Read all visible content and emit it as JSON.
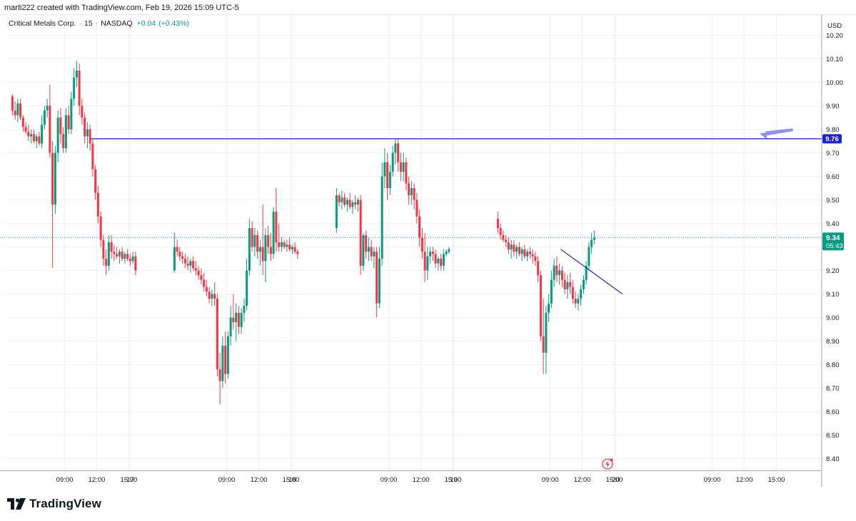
{
  "header": {
    "attribution": "marti222 created with TradingView.com, Feb 19, 2026 15:09 UTC-5"
  },
  "legend": {
    "symbol_name": "Critical Metals Corp.",
    "interval": "15",
    "exchange": "NASDAQ",
    "separator": "·",
    "change": "+0.04",
    "change_pct": "(+0.43%)"
  },
  "price_axis": {
    "currency": "USD",
    "ticks": [
      "10.20",
      "10.10",
      "10.00",
      "9.90",
      "9.80",
      "9.70",
      "9.60",
      "9.50",
      "9.40",
      "9.30",
      "9.20",
      "9.10",
      "9.00",
      "8.90",
      "8.80",
      "8.70",
      "8.60",
      "8.50",
      "8.40"
    ]
  },
  "time_axis": {
    "ticks": [
      "09:00",
      "12:00",
      "15:00",
      "17",
      "09:00",
      "12:00",
      "15:00",
      "18",
      "09:00",
      "12:00",
      "15:00",
      "19",
      "09:00",
      "12:00",
      "15:00",
      "20",
      "09:00",
      "12:00",
      "15:00"
    ]
  },
  "price_labels": {
    "level_label": "9.76",
    "last_price": "9.34",
    "countdown": "05:43"
  },
  "footer": {
    "brand": "TradingView"
  },
  "colors": {
    "up": "#089981",
    "down": "#f23645",
    "level_line": "#2a2ee8",
    "arrow": "#7b7ff0",
    "grid": "#eef0f4",
    "last_price": "#089981"
  },
  "chart_data": {
    "type": "candlestick",
    "interval_minutes": 15,
    "ylim": [
      8.35,
      10.27
    ],
    "horizontal_level": 9.76,
    "last_price": 9.34,
    "trendline": {
      "from": [
        "Feb 19 10:00",
        9.29
      ],
      "to": [
        "Feb 19 15:45",
        9.1
      ]
    },
    "sessions": [
      {
        "date": "Feb 16",
        "start": "04:00",
        "ohlc": [
          [
            9.94,
            9.95,
            9.86,
            9.88
          ],
          [
            9.88,
            9.92,
            9.84,
            9.86
          ],
          [
            9.86,
            9.93,
            9.83,
            9.91
          ],
          [
            9.91,
            9.93,
            9.84,
            9.85
          ],
          [
            9.85,
            9.86,
            9.79,
            9.81
          ],
          [
            9.81,
            9.83,
            9.78,
            9.79
          ],
          [
            9.79,
            9.82,
            9.75,
            9.77
          ],
          [
            9.77,
            9.8,
            9.74,
            9.78
          ],
          [
            9.78,
            9.8,
            9.74,
            9.75
          ],
          [
            9.75,
            9.78,
            9.72,
            9.77
          ],
          [
            9.77,
            9.79,
            9.73,
            9.74
          ],
          [
            9.74,
            9.86,
            9.72,
            9.82
          ],
          [
            9.82,
            9.9,
            9.8,
            9.88
          ],
          [
            9.88,
            9.93,
            9.85,
            9.9
          ],
          [
            9.9,
            9.99,
            9.68,
            9.7
          ],
          [
            9.7,
            9.75,
            9.21,
            9.48
          ],
          [
            9.48,
            9.73,
            9.44,
            9.7
          ],
          [
            9.7,
            9.88,
            9.66,
            9.85
          ],
          [
            9.85,
            9.89,
            9.74,
            9.78
          ],
          [
            9.78,
            9.81,
            9.7,
            9.72
          ],
          [
            9.72,
            9.89,
            9.7,
            9.86
          ],
          [
            9.86,
            9.9,
            9.78,
            9.8
          ],
          [
            9.8,
            9.96,
            9.78,
            9.93
          ],
          [
            9.93,
            10.06,
            9.9,
            10.02
          ],
          [
            10.02,
            10.09,
            9.98,
            10.05
          ],
          [
            10.05,
            10.08,
            9.86,
            9.9
          ],
          [
            9.9,
            9.93,
            9.82,
            9.85
          ],
          [
            9.85,
            9.87,
            9.74,
            9.77
          ],
          [
            9.77,
            9.83,
            9.72,
            9.8
          ],
          [
            9.8,
            9.82,
            9.71,
            9.74
          ],
          [
            9.74,
            9.76,
            9.6,
            9.63
          ],
          [
            9.63,
            9.65,
            9.5,
            9.53
          ],
          [
            9.53,
            9.56,
            9.4,
            9.43
          ],
          [
            9.43,
            9.45,
            9.3,
            9.33
          ],
          [
            9.33,
            9.35,
            9.22,
            9.25
          ],
          [
            9.25,
            9.29,
            9.18,
            9.22
          ],
          [
            9.22,
            9.35,
            9.2,
            9.32
          ],
          [
            9.32,
            9.35,
            9.25,
            9.28
          ],
          [
            9.28,
            9.31,
            9.24,
            9.27
          ],
          [
            9.27,
            9.3,
            9.25,
            9.26
          ],
          [
            9.26,
            9.29,
            9.23,
            9.28
          ],
          [
            9.28,
            9.3,
            9.24,
            9.25
          ],
          [
            9.25,
            9.28,
            9.23,
            9.27
          ],
          [
            9.27,
            9.29,
            9.24,
            9.25
          ],
          [
            9.25,
            9.27,
            9.22,
            9.24
          ],
          [
            9.24,
            9.28,
            9.23,
            9.26
          ],
          [
            9.26,
            9.28,
            9.18,
            9.2
          ]
        ]
      },
      {
        "date": "Feb 17",
        "start": "04:00",
        "ohlc": [
          [
            9.2,
            9.36,
            9.19,
            9.3
          ],
          [
            9.3,
            9.33,
            9.26,
            9.28
          ],
          [
            9.28,
            9.3,
            9.24,
            9.26
          ],
          [
            9.26,
            9.28,
            9.23,
            9.25
          ],
          [
            9.25,
            9.27,
            9.21,
            9.23
          ],
          [
            9.23,
            9.26,
            9.2,
            9.22
          ],
          [
            9.22,
            9.25,
            9.19,
            9.24
          ],
          [
            9.24,
            9.26,
            9.2,
            9.21
          ],
          [
            9.21,
            9.24,
            9.18,
            9.2
          ],
          [
            9.2,
            9.22,
            9.16,
            9.18
          ],
          [
            9.18,
            9.21,
            9.14,
            9.16
          ],
          [
            9.16,
            9.19,
            9.11,
            9.13
          ],
          [
            9.13,
            9.16,
            9.09,
            9.11
          ],
          [
            9.11,
            9.13,
            9.06,
            9.08
          ],
          [
            9.08,
            9.12,
            9.05,
            9.1
          ],
          [
            9.1,
            9.15,
            9.05,
            9.08
          ],
          [
            9.08,
            9.1,
            8.75,
            8.78
          ],
          [
            8.78,
            8.85,
            8.63,
            8.73
          ],
          [
            8.73,
            8.92,
            8.7,
            8.88
          ],
          [
            8.88,
            8.94,
            8.72,
            8.76
          ],
          [
            8.76,
            8.94,
            8.74,
            8.92
          ],
          [
            8.92,
            9.05,
            8.88,
            9.0
          ],
          [
            9.0,
            9.1,
            8.95,
            8.98
          ],
          [
            8.98,
            9.06,
            8.9,
            9.02
          ],
          [
            9.02,
            9.05,
            8.93,
            8.96
          ],
          [
            8.96,
            9.04,
            8.93,
            9.02
          ],
          [
            9.02,
            9.08,
            8.98,
            9.05
          ],
          [
            9.05,
            9.25,
            9.03,
            9.2
          ],
          [
            9.2,
            9.42,
            9.18,
            9.38
          ],
          [
            9.38,
            9.41,
            9.28,
            9.3
          ],
          [
            9.3,
            9.38,
            9.26,
            9.35
          ],
          [
            9.35,
            9.37,
            9.25,
            9.28
          ],
          [
            9.28,
            9.33,
            9.22,
            9.3
          ],
          [
            9.3,
            9.48,
            9.18,
            9.24
          ],
          [
            9.24,
            9.38,
            9.15,
            9.35
          ],
          [
            9.35,
            9.39,
            9.27,
            9.3
          ],
          [
            9.3,
            9.36,
            9.24,
            9.27
          ],
          [
            9.27,
            9.47,
            9.25,
            9.45
          ],
          [
            9.45,
            9.55,
            9.28,
            9.32
          ],
          [
            9.32,
            9.4,
            9.28,
            9.3
          ],
          [
            9.3,
            9.34,
            9.28,
            9.32
          ],
          [
            9.32,
            9.33,
            9.29,
            9.3
          ],
          [
            9.3,
            9.33,
            9.28,
            9.31
          ],
          [
            9.31,
            9.34,
            9.28,
            9.29
          ],
          [
            9.29,
            9.31,
            9.27,
            9.3
          ],
          [
            9.3,
            9.32,
            9.27,
            9.28
          ],
          [
            9.28,
            9.29,
            9.25,
            9.27
          ]
        ]
      },
      {
        "date": "Feb 18",
        "start": "04:00",
        "ohlc": [
          [
            9.38,
            9.55,
            9.36,
            9.52
          ],
          [
            9.52,
            9.53,
            9.47,
            9.49
          ],
          [
            9.49,
            9.54,
            9.46,
            9.51
          ],
          [
            9.51,
            9.53,
            9.47,
            9.48
          ],
          [
            9.48,
            9.51,
            9.45,
            9.5
          ],
          [
            9.5,
            9.53,
            9.46,
            9.47
          ],
          [
            9.47,
            9.5,
            9.44,
            9.49
          ],
          [
            9.49,
            9.52,
            9.46,
            9.48
          ],
          [
            9.48,
            9.51,
            9.45,
            9.5
          ],
          [
            9.5,
            9.52,
            9.18,
            9.22
          ],
          [
            9.22,
            9.36,
            9.2,
            9.35
          ],
          [
            9.35,
            9.37,
            9.25,
            9.28
          ],
          [
            9.28,
            9.34,
            9.24,
            9.3
          ],
          [
            9.3,
            9.33,
            9.24,
            9.26
          ],
          [
            9.26,
            9.3,
            9.21,
            9.28
          ],
          [
            9.28,
            9.3,
            9.0,
            9.06
          ],
          [
            9.06,
            9.3,
            9.04,
            9.25
          ],
          [
            9.25,
            9.66,
            9.22,
            9.6
          ],
          [
            9.6,
            9.72,
            9.55,
            9.66
          ],
          [
            9.66,
            9.7,
            9.5,
            9.55
          ],
          [
            9.55,
            9.65,
            9.52,
            9.62
          ],
          [
            9.62,
            9.73,
            9.6,
            9.7
          ],
          [
            9.7,
            9.76,
            9.65,
            9.74
          ],
          [
            9.74,
            9.76,
            9.62,
            9.66
          ],
          [
            9.66,
            9.7,
            9.58,
            9.62
          ],
          [
            9.62,
            9.7,
            9.58,
            9.66
          ],
          [
            9.66,
            9.68,
            9.54,
            9.57
          ],
          [
            9.57,
            9.6,
            9.48,
            9.52
          ],
          [
            9.52,
            9.58,
            9.48,
            9.55
          ],
          [
            9.55,
            9.57,
            9.46,
            9.5
          ],
          [
            9.5,
            9.53,
            9.4,
            9.43
          ],
          [
            9.43,
            9.46,
            9.3,
            9.34
          ],
          [
            9.34,
            9.38,
            9.25,
            9.28
          ],
          [
            9.28,
            9.36,
            9.15,
            9.2
          ],
          [
            9.2,
            9.3,
            9.16,
            9.26
          ],
          [
            9.26,
            9.3,
            9.23,
            9.28
          ],
          [
            9.28,
            9.3,
            9.24,
            9.27
          ],
          [
            9.27,
            9.29,
            9.21,
            9.23
          ],
          [
            9.23,
            9.26,
            9.2,
            9.25
          ],
          [
            9.25,
            9.27,
            9.2,
            9.22
          ],
          [
            9.22,
            9.29,
            9.2,
            9.27
          ],
          [
            9.27,
            9.29,
            9.26,
            9.28
          ],
          [
            9.28,
            9.3,
            9.27,
            9.29
          ]
        ]
      },
      {
        "date": "Feb 19",
        "start": "04:00",
        "ohlc": [
          [
            9.42,
            9.45,
            9.36,
            9.38
          ],
          [
            9.38,
            9.4,
            9.33,
            9.35
          ],
          [
            9.35,
            9.37,
            9.32,
            9.33
          ],
          [
            9.33,
            9.35,
            9.3,
            9.32
          ],
          [
            9.32,
            9.34,
            9.27,
            9.29
          ],
          [
            9.29,
            9.33,
            9.25,
            9.31
          ],
          [
            9.31,
            9.33,
            9.26,
            9.28
          ],
          [
            9.28,
            9.31,
            9.25,
            9.3
          ],
          [
            9.3,
            9.32,
            9.26,
            9.27
          ],
          [
            9.27,
            9.3,
            9.24,
            9.29
          ],
          [
            9.29,
            9.31,
            9.25,
            9.26
          ],
          [
            9.26,
            9.29,
            9.24,
            9.28
          ],
          [
            9.28,
            9.3,
            9.25,
            9.27
          ],
          [
            9.27,
            9.29,
            9.23,
            9.26
          ],
          [
            9.26,
            9.28,
            9.22,
            9.24
          ],
          [
            9.24,
            9.26,
            9.15,
            9.18
          ],
          [
            9.18,
            9.2,
            8.9,
            8.92
          ],
          [
            8.92,
            9.08,
            8.76,
            8.85
          ],
          [
            8.85,
            9.05,
            8.76,
            9.02
          ],
          [
            9.02,
            9.1,
            8.98,
            9.06
          ],
          [
            9.06,
            9.2,
            9.04,
            9.16
          ],
          [
            9.16,
            9.25,
            9.13,
            9.22
          ],
          [
            9.22,
            9.26,
            9.15,
            9.18
          ],
          [
            9.18,
            9.23,
            9.14,
            9.2
          ],
          [
            9.2,
            9.22,
            9.13,
            9.16
          ],
          [
            9.16,
            9.19,
            9.1,
            9.12
          ],
          [
            9.12,
            9.18,
            9.08,
            9.15
          ],
          [
            9.15,
            9.19,
            9.1,
            9.13
          ],
          [
            9.13,
            9.16,
            9.06,
            9.08
          ],
          [
            9.08,
            9.11,
            9.04,
            9.06
          ],
          [
            9.06,
            9.1,
            9.03,
            9.08
          ],
          [
            9.08,
            9.14,
            9.05,
            9.12
          ],
          [
            9.12,
            9.18,
            9.1,
            9.16
          ],
          [
            9.16,
            9.24,
            9.14,
            9.22
          ],
          [
            9.22,
            9.32,
            9.2,
            9.3
          ],
          [
            9.3,
            9.36,
            9.27,
            9.33
          ],
          [
            9.33,
            9.37,
            9.31,
            9.34
          ]
        ]
      }
    ]
  }
}
